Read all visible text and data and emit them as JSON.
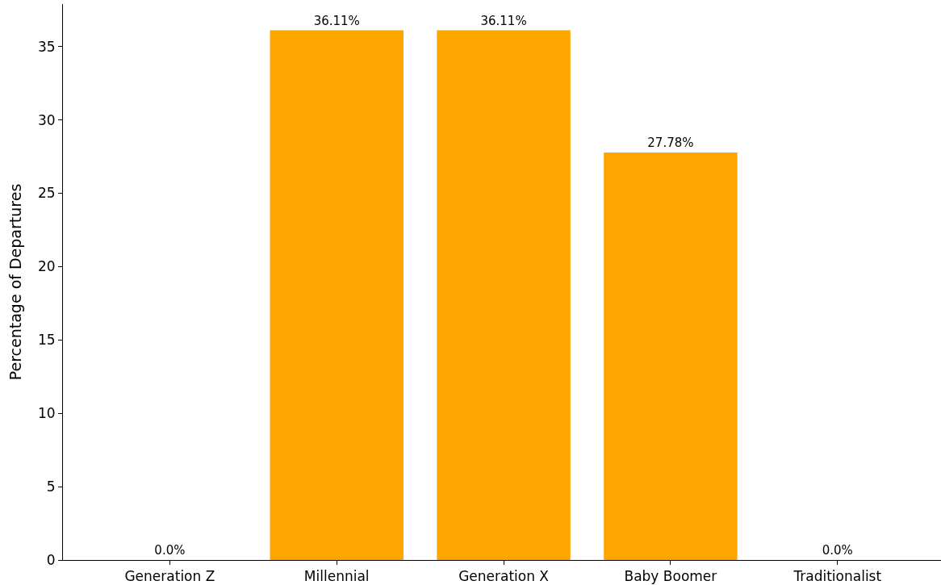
{
  "chart_data": {
    "type": "bar",
    "ylabel": "Percentage of Departures",
    "categories": [
      "Generation Z",
      "Millennial",
      "Generation X",
      "Baby Boomer",
      "Traditionalist"
    ],
    "values": [
      0.0,
      36.11,
      36.11,
      27.78,
      0.0
    ],
    "value_labels": [
      "0.0%",
      "36.11%",
      "36.11%",
      "27.78%",
      "0.0%"
    ],
    "color": "#ffa500",
    "ylim": [
      0,
      37.9
    ],
    "yticks": [
      0,
      5,
      10,
      15,
      20,
      25,
      30,
      35
    ]
  }
}
